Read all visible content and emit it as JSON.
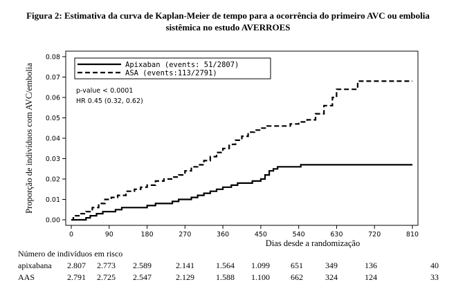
{
  "title_line1": "Figura 2: Estimativa da curva de Kaplan-Meier de tempo para a ocorrência do primeiro AVC ou embolia",
  "title_line2": "sistêmica no estudo AVERROES",
  "chart_data": {
    "type": "line",
    "title": "",
    "xlabel": "Dias desde a randomização",
    "ylabel": "Proporção de indivíduos com AVC/embolia",
    "xlim": [
      0,
      810
    ],
    "ylim": [
      0,
      0.08
    ],
    "xticks": [
      "0",
      "90",
      "180",
      "270",
      "360",
      "450",
      "540",
      "630",
      "720",
      "810"
    ],
    "yticks": [
      "0.00",
      "0.01",
      "0.02",
      "0.03",
      "0.04",
      "0.05",
      "0.06",
      "0.07",
      "0.08"
    ],
    "grid": false,
    "legend_position": "top-left",
    "annotations": [
      "p-value < 0.0001",
      "HR 0.45 (0.32, 0.62)"
    ],
    "series": [
      {
        "name": "Apixaban (events: 51/2807)",
        "style": "solid",
        "x": [
          0,
          20,
          35,
          45,
          60,
          75,
          90,
          105,
          120,
          135,
          150,
          180,
          200,
          215,
          240,
          255,
          270,
          285,
          300,
          315,
          330,
          345,
          360,
          380,
          395,
          405,
          420,
          430,
          440,
          450,
          460,
          470,
          480,
          490,
          510,
          530,
          545,
          560,
          600,
          650,
          700,
          750,
          810
        ],
        "y": [
          0.0,
          0.0,
          0.001,
          0.002,
          0.003,
          0.004,
          0.004,
          0.005,
          0.006,
          0.006,
          0.006,
          0.007,
          0.008,
          0.008,
          0.009,
          0.01,
          0.01,
          0.011,
          0.012,
          0.013,
          0.014,
          0.015,
          0.016,
          0.017,
          0.018,
          0.018,
          0.018,
          0.019,
          0.019,
          0.02,
          0.022,
          0.024,
          0.025,
          0.026,
          0.026,
          0.026,
          0.027,
          0.027,
          0.027,
          0.027,
          0.027,
          0.027,
          0.027
        ]
      },
      {
        "name": "ASA (events:113/2791)",
        "style": "dashed",
        "x": [
          0,
          5,
          10,
          20,
          35,
          50,
          65,
          80,
          95,
          110,
          130,
          150,
          165,
          180,
          200,
          220,
          240,
          255,
          270,
          285,
          300,
          315,
          330,
          345,
          360,
          375,
          390,
          405,
          420,
          435,
          450,
          465,
          480,
          500,
          520,
          540,
          560,
          580,
          600,
          620,
          630,
          645,
          660,
          680,
          700,
          740,
          780,
          810
        ],
        "y": [
          0.0,
          0.001,
          0.002,
          0.003,
          0.004,
          0.006,
          0.008,
          0.01,
          0.011,
          0.012,
          0.014,
          0.015,
          0.016,
          0.017,
          0.019,
          0.02,
          0.021,
          0.022,
          0.024,
          0.026,
          0.027,
          0.029,
          0.031,
          0.033,
          0.035,
          0.037,
          0.039,
          0.041,
          0.043,
          0.044,
          0.045,
          0.046,
          0.046,
          0.046,
          0.047,
          0.048,
          0.049,
          0.052,
          0.056,
          0.06,
          0.064,
          0.064,
          0.064,
          0.068,
          0.068,
          0.068,
          0.068,
          0.068
        ]
      }
    ]
  },
  "risk_table": {
    "title": "Número de indivíduos em risco",
    "rows": [
      {
        "label": "apixabana",
        "values": [
          "2.807",
          "2.773",
          "2.589",
          "2.141",
          "1.564",
          "1.099",
          "651",
          "349",
          "136",
          "40"
        ]
      },
      {
        "label": "AAS",
        "values": [
          "2.791",
          "2.725",
          "2.547",
          "2.129",
          "1.588",
          "1.100",
          "662",
          "324",
          "124",
          "33"
        ]
      }
    ]
  }
}
